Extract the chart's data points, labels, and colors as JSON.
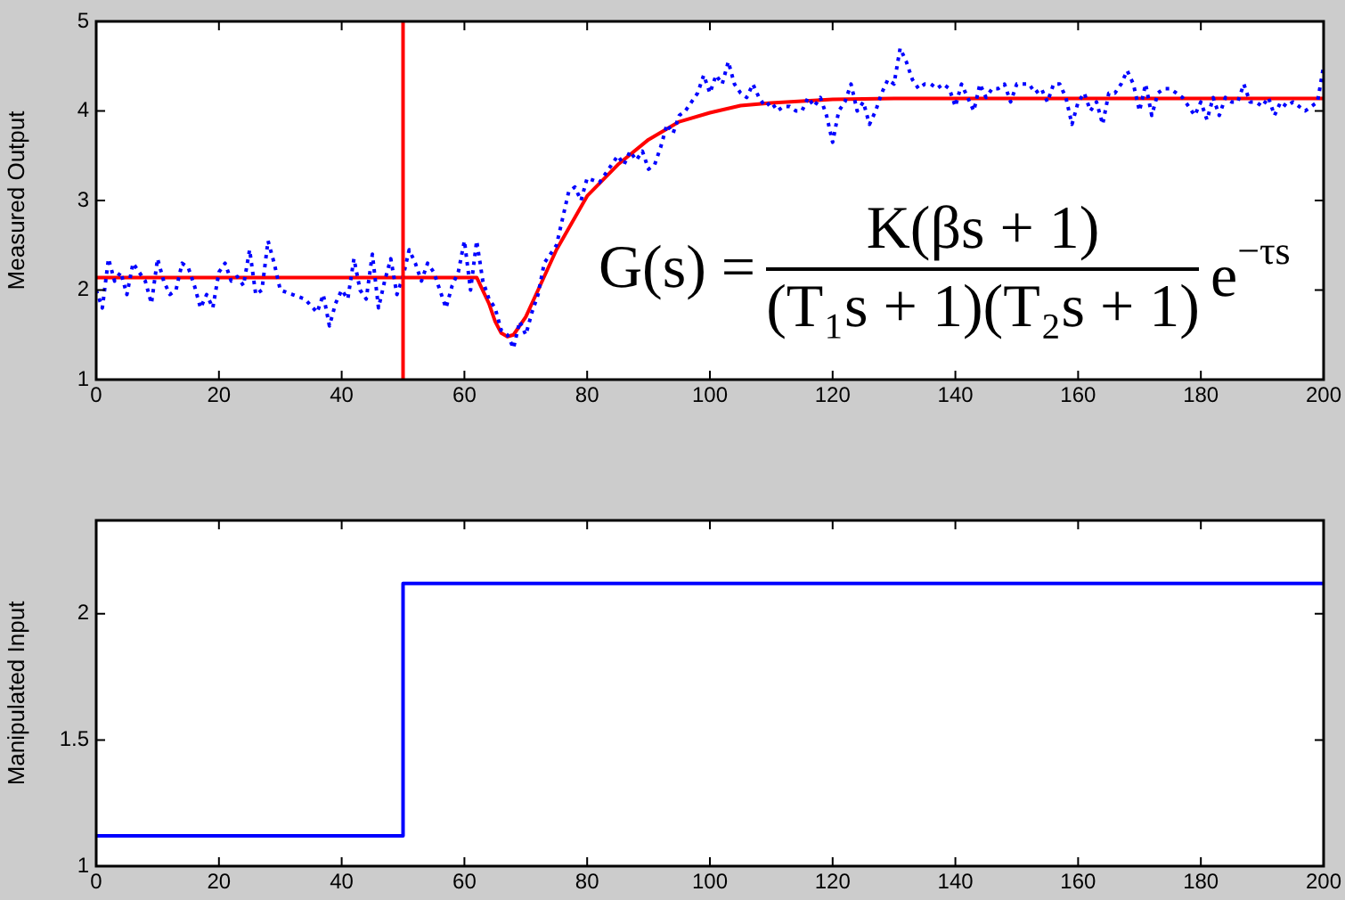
{
  "chart_data": [
    {
      "type": "line",
      "ylabel": "Measured Output",
      "xlim": [
        0,
        200
      ],
      "xticks": [
        0,
        20,
        40,
        60,
        80,
        100,
        120,
        140,
        160,
        180,
        200
      ],
      "ylim": [
        1,
        5
      ],
      "yticks": [
        1,
        2,
        3,
        4,
        5
      ],
      "series": [
        {
          "color": "#0000ff",
          "line_style": "dotted",
          "x": [
            0,
            1,
            2,
            3,
            4,
            5,
            6,
            7,
            8,
            9,
            10,
            11,
            12,
            13,
            14,
            15,
            16,
            17,
            18,
            19,
            20,
            21,
            22,
            23,
            24,
            25,
            26,
            27,
            28,
            29,
            30,
            32,
            34,
            36,
            37,
            38,
            39,
            40,
            41,
            42,
            43,
            44,
            45,
            46,
            47,
            48,
            49,
            50,
            51,
            52,
            53,
            54,
            55,
            56,
            57,
            58,
            59,
            60,
            61,
            62,
            63,
            64,
            65,
            66,
            67,
            68,
            69,
            70,
            71,
            72,
            73,
            74,
            75,
            76,
            77,
            78,
            79,
            80,
            82,
            84,
            85,
            86,
            87,
            88,
            89,
            90,
            91,
            92,
            93,
            94,
            95,
            96,
            98,
            99,
            100,
            101,
            102,
            103,
            104,
            105,
            106,
            107,
            108,
            109,
            110,
            111,
            112,
            113,
            114,
            115,
            116,
            117,
            118,
            119,
            120,
            121,
            122,
            123,
            124,
            125,
            126,
            127,
            128,
            129,
            130,
            131,
            132,
            133,
            134,
            135,
            136,
            137,
            138,
            139,
            140,
            141,
            142,
            143,
            144,
            145,
            146,
            147,
            148,
            149,
            150,
            151,
            152,
            153,
            154,
            155,
            156,
            157,
            158,
            159,
            160,
            161,
            162,
            163,
            164,
            165,
            166,
            167,
            168,
            169,
            170,
            171,
            172,
            173,
            174,
            175,
            176,
            177,
            178,
            179,
            180,
            181,
            182,
            183,
            184,
            185,
            186,
            187,
            188,
            189,
            190,
            191,
            192,
            193,
            194,
            195,
            196,
            197,
            198,
            199,
            200
          ],
          "values": [
            2.0,
            1.8,
            2.35,
            2.1,
            2.2,
            1.95,
            2.3,
            2.2,
            2.1,
            1.85,
            2.35,
            2.1,
            1.95,
            2.0,
            2.3,
            2.25,
            2.05,
            1.8,
            1.95,
            1.8,
            2.2,
            2.3,
            2.1,
            2.15,
            2.05,
            2.45,
            1.95,
            2.0,
            2.55,
            2.3,
            2.0,
            1.95,
            1.9,
            1.75,
            1.95,
            1.6,
            1.85,
            2.0,
            1.9,
            2.35,
            2.0,
            1.9,
            2.4,
            1.8,
            2.1,
            2.35,
            1.95,
            2.15,
            2.45,
            2.3,
            2.1,
            2.3,
            2.2,
            2.0,
            1.8,
            2.05,
            2.2,
            2.55,
            2.0,
            2.55,
            2.1,
            1.9,
            1.8,
            1.55,
            1.5,
            1.35,
            1.65,
            1.5,
            1.75,
            1.95,
            2.3,
            2.4,
            2.5,
            2.8,
            3.1,
            3.15,
            3.0,
            3.25,
            3.2,
            3.4,
            3.5,
            3.4,
            3.55,
            3.45,
            3.55,
            3.35,
            3.4,
            3.6,
            3.85,
            3.75,
            3.95,
            4.0,
            4.2,
            4.4,
            4.2,
            4.4,
            4.3,
            4.55,
            4.3,
            4.2,
            4.15,
            4.3,
            4.15,
            4.05,
            4.1,
            4.0,
            4.05,
            4.05,
            4.0,
            4.0,
            4.15,
            4.05,
            4.15,
            3.95,
            3.65,
            4.0,
            4.1,
            4.3,
            4.0,
            4.1,
            3.85,
            4.0,
            4.2,
            4.35,
            4.3,
            4.7,
            4.55,
            4.35,
            4.25,
            4.3,
            4.3,
            4.25,
            4.3,
            4.25,
            4.05,
            4.3,
            4.15,
            4.0,
            4.3,
            4.15,
            4.25,
            4.25,
            4.3,
            4.1,
            4.3,
            4.3,
            4.3,
            4.2,
            4.25,
            4.1,
            4.3,
            4.3,
            4.15,
            3.85,
            4.1,
            4.2,
            4.0,
            4.1,
            3.85,
            4.2,
            4.2,
            4.3,
            4.45,
            4.3,
            4.0,
            4.3,
            3.95,
            4.2,
            4.25,
            4.25,
            4.2,
            4.15,
            4.05,
            3.95,
            4.1,
            3.9,
            4.15,
            3.95,
            4.15,
            4.1,
            4.1,
            4.3,
            4.1,
            4.1,
            4.05,
            4.15,
            3.95,
            4.1,
            4.05,
            4.1,
            4.05,
            4.0,
            4.05,
            4.1,
            4.5
          ]
        },
        {
          "color": "#ff0000",
          "x": [
            0,
            62,
            64,
            65,
            66,
            67,
            68,
            70,
            72,
            75,
            80,
            85,
            90,
            95,
            100,
            105,
            110,
            120,
            130,
            200
          ],
          "values": [
            2.14,
            2.14,
            1.85,
            1.65,
            1.52,
            1.48,
            1.5,
            1.7,
            2.0,
            2.45,
            3.05,
            3.4,
            3.68,
            3.88,
            3.98,
            4.06,
            4.09,
            4.13,
            4.14,
            4.14
          ]
        }
      ],
      "ref_lines": [
        {
          "axis": "x",
          "value": 50,
          "color": "#ff0000"
        }
      ],
      "annotations": [
        "G(s) =",
        "K(βs + 1)",
        "(T₁s + 1)(T₂s + 1)",
        "e$^{−τs}$"
      ]
    },
    {
      "type": "step",
      "ylabel": "Manipulated Input",
      "xlim": [
        0,
        200
      ],
      "xticks": [
        0,
        20,
        40,
        60,
        80,
        100,
        120,
        140,
        160,
        180,
        200
      ],
      "ylim": [
        1,
        2.37
      ],
      "yticks": [
        1,
        1.5,
        2
      ],
      "series": [
        {
          "color": "#0000ff",
          "x": [
            0,
            50,
            200
          ],
          "values": [
            1.12,
            2.12,
            2.12
          ]
        }
      ]
    }
  ]
}
